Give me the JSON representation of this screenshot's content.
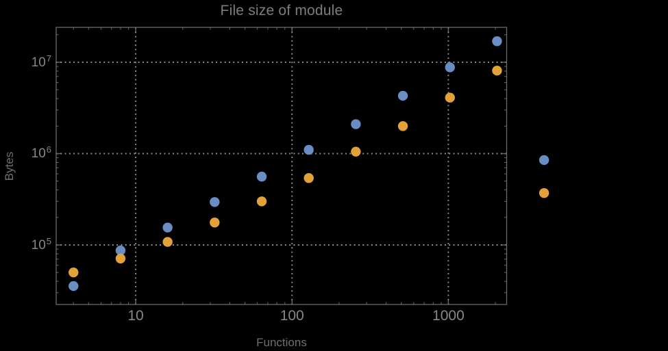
{
  "chart_data": {
    "type": "scatter",
    "title": "File size of module",
    "xlabel": "Functions",
    "ylabel": "Bytes",
    "x_scale": "log",
    "y_scale": "log",
    "x_tick_labels": [
      "10",
      "100",
      "1000"
    ],
    "x_tick_values": [
      10,
      100,
      1000
    ],
    "y_tick_labels": [
      "10^5",
      "10^6",
      "10^7"
    ],
    "y_tick_exponents": [
      5,
      6,
      7
    ],
    "xlim": [
      3.1,
      2360
    ],
    "ylim": [
      22300,
      24100000
    ],
    "grid": "dotted-major",
    "legend": "none",
    "x": [
      4,
      8,
      16,
      32,
      64,
      128,
      256,
      512,
      1024,
      2048,
      4096
    ],
    "series": [
      {
        "name": "blue",
        "color": "#6A8DC3",
        "values": [
          35500,
          87000,
          155000,
          295000,
          560000,
          1100000,
          2100000,
          4300000,
          8800000,
          17000000,
          850000
        ]
      },
      {
        "name": "orange",
        "color": "#E2A139",
        "values": [
          50000,
          71000,
          108000,
          176000,
          300000,
          540000,
          1050000,
          2000000,
          4100000,
          8100000,
          370000
        ]
      }
    ]
  },
  "colors": {
    "background": "#000000",
    "frame": "#6A6A6A",
    "grid": "#929292",
    "tick_label": "#878787",
    "axis_label": "#6F6F6F",
    "title": "#7D7D7D"
  }
}
